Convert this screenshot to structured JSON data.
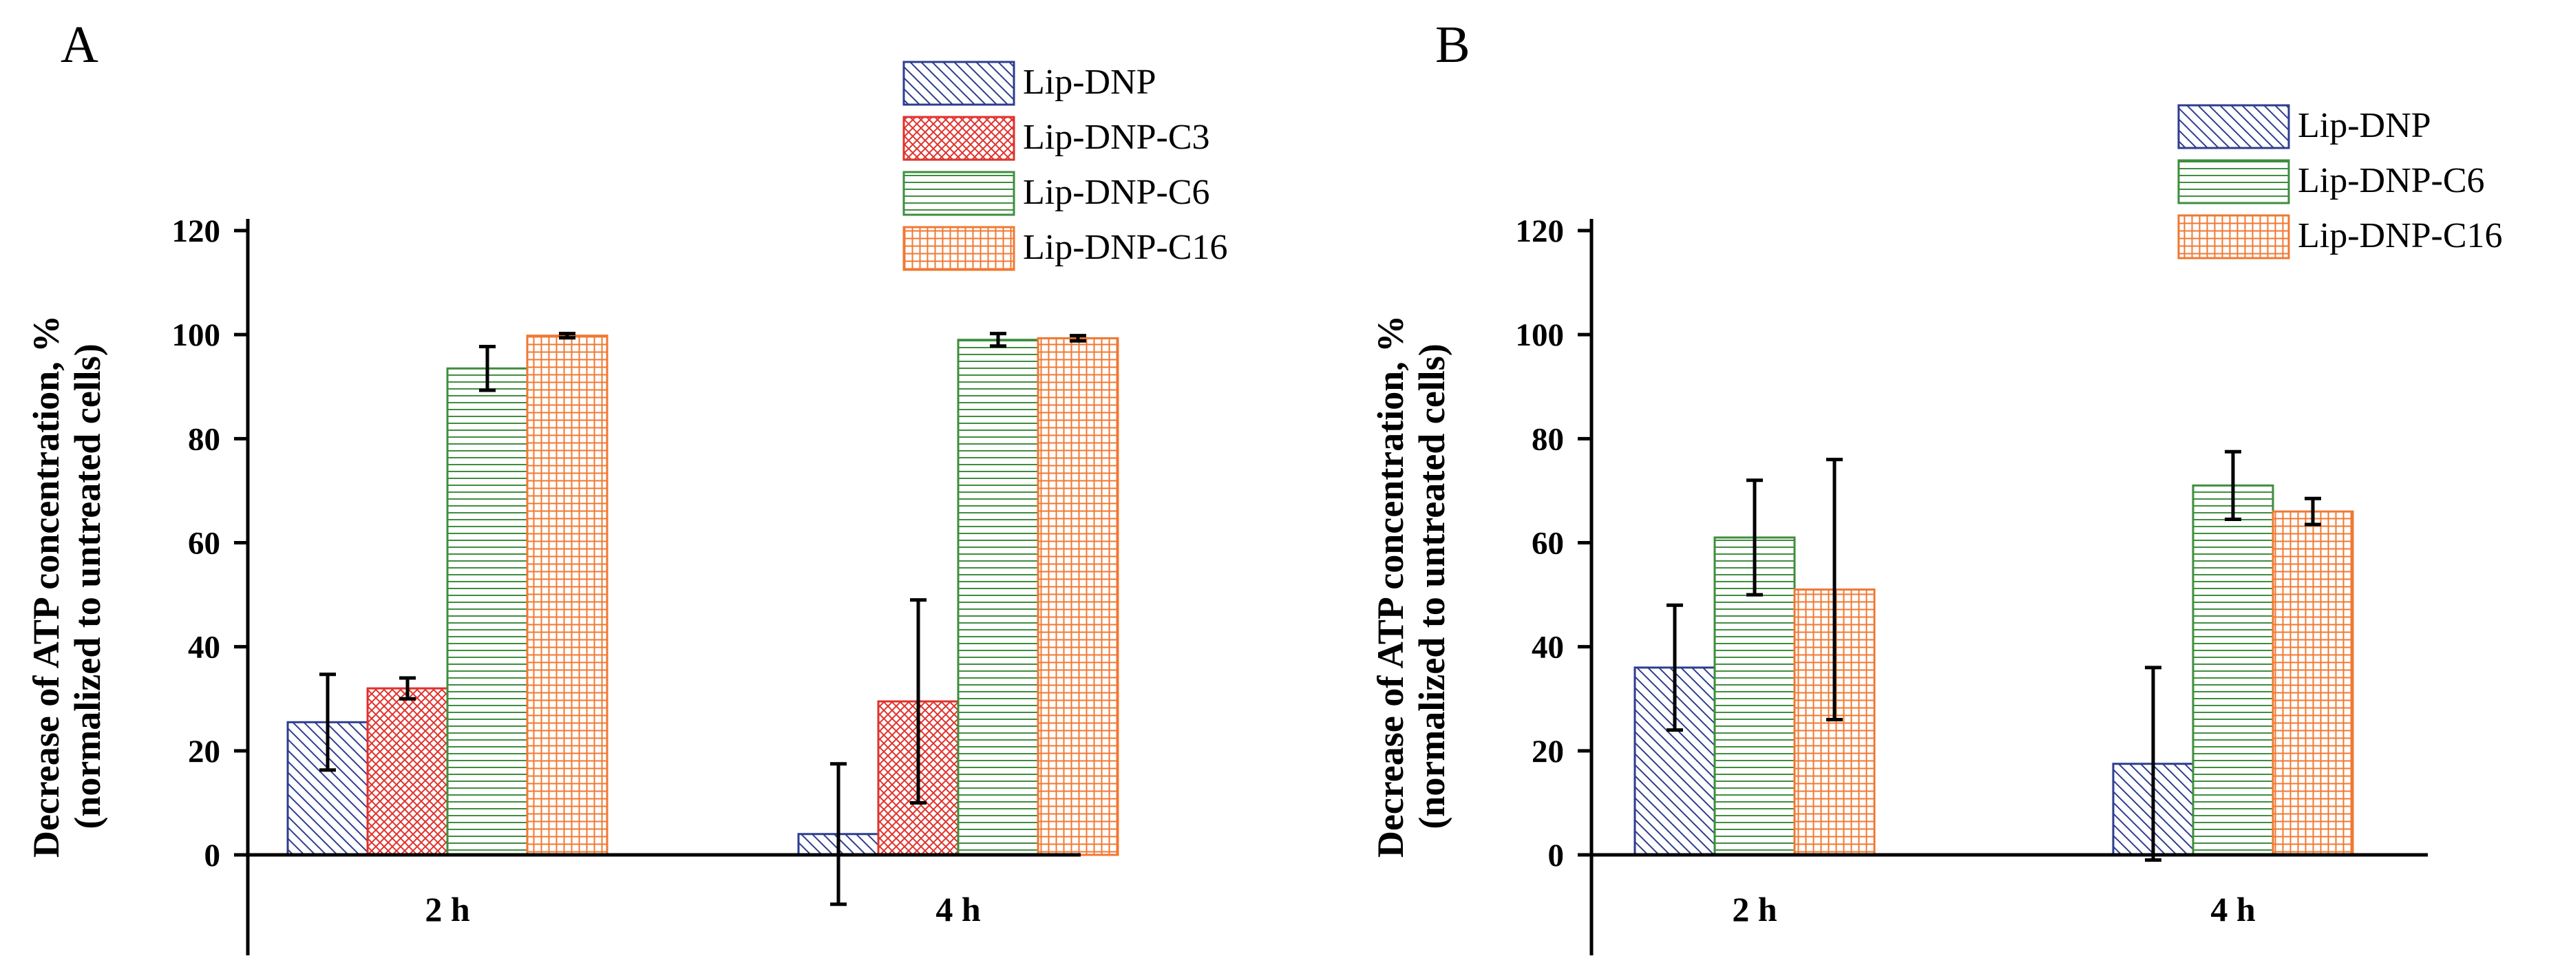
{
  "chart_data": [
    {
      "type": "bar",
      "panel": "A",
      "ylabel": "Decrease of ATP concentration, %",
      "ylabel2": "(normalized to untreated cells)",
      "ylim": [
        -20,
        120
      ],
      "yticks": [
        "0",
        "20",
        "40",
        "60",
        "80",
        "100",
        "120"
      ],
      "categories": [
        "2 h",
        "4 h"
      ],
      "series": [
        {
          "name": "Lip-DNP",
          "color": "#2E3D8F",
          "pattern": "diag",
          "values": [
            25.5,
            4
          ],
          "errors": [
            9.2,
            13.5
          ]
        },
        {
          "name": "Lip-DNP-C3",
          "color": "#E0322C",
          "pattern": "cross",
          "values": [
            32,
            29.5
          ],
          "errors": [
            2,
            19.5
          ]
        },
        {
          "name": "Lip-DNP-C6",
          "color": "#3E8E3E",
          "pattern": "hlines",
          "values": [
            93.5,
            99
          ],
          "errors": [
            4.2,
            1.2
          ]
        },
        {
          "name": "Lip-DNP-C16",
          "color": "#F07832",
          "pattern": "grid",
          "values": [
            99.8,
            99.3
          ],
          "errors": [
            0.4,
            0.5
          ]
        }
      ]
    },
    {
      "type": "bar",
      "panel": "B",
      "ylabel": "Decrease of ATP concentration, %",
      "ylabel2": "(normalized to untreated cells)",
      "ylim": [
        -20,
        120
      ],
      "yticks": [
        "0",
        "20",
        "40",
        "60",
        "80",
        "100",
        "120"
      ],
      "categories": [
        "2 h",
        "4 h"
      ],
      "series": [
        {
          "name": "Lip-DNP",
          "color": "#2E3D8F",
          "pattern": "diag",
          "values": [
            36,
            17.5
          ],
          "errors": [
            12,
            18.5
          ]
        },
        {
          "name": "Lip-DNP-C6",
          "color": "#3E8E3E",
          "pattern": "hlines",
          "values": [
            61,
            71
          ],
          "errors": [
            11,
            6.5
          ]
        },
        {
          "name": "Lip-DNP-C16",
          "color": "#F07832",
          "pattern": "grid",
          "values": [
            51,
            66
          ],
          "errors": [
            25,
            2.5
          ]
        }
      ]
    }
  ]
}
